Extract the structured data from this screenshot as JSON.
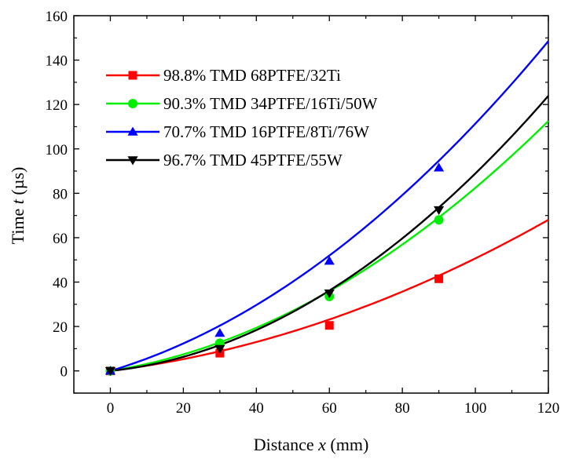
{
  "chart_data": {
    "type": "line",
    "xlabel": "Distance x (mm)",
    "ylabel": "Time t (µs)",
    "xlabel_parts": [
      "Distance ",
      "x",
      " (mm)"
    ],
    "ylabel_parts": [
      "Time ",
      "t",
      " (µs)"
    ],
    "xlim": [
      -10,
      120
    ],
    "ylim": [
      -10,
      160
    ],
    "xticks": [
      0,
      20,
      40,
      60,
      80,
      100,
      120
    ],
    "yticks": [
      0,
      20,
      40,
      60,
      80,
      100,
      120,
      140,
      160
    ],
    "grid": false,
    "legend_position": "top-left",
    "series": [
      {
        "name": "98.8% TMD 68PTFE/32Ti",
        "color": "#ff0000",
        "marker": "square",
        "points": [
          [
            0,
            0
          ],
          [
            30,
            8
          ],
          [
            60,
            20.5
          ],
          [
            90,
            41.5
          ]
        ],
        "fit_coefficients": [
          0.2047,
          0.00302
        ]
      },
      {
        "name": "90.3% TMD 34PTFE/16Ti/50W",
        "color": "#00ee00",
        "marker": "circle",
        "points": [
          [
            0,
            0
          ],
          [
            30,
            12.5
          ],
          [
            60,
            33.5
          ],
          [
            90,
            68
          ]
        ],
        "fit_coefficients": [
          0.2587,
          0.00566
        ]
      },
      {
        "name": "70.7% TMD 16PTFE/8Ti/76W",
        "color": "#0000ff",
        "marker": "triangle-up",
        "points": [
          [
            0,
            0
          ],
          [
            30,
            17
          ],
          [
            60,
            49.5
          ],
          [
            90,
            91.5
          ]
        ],
        "fit_coefficients": [
          0.4938,
          0.0062
        ]
      },
      {
        "name": "96.7% TMD 45PTFE/55W",
        "color": "#000000",
        "marker": "triangle-down",
        "points": [
          [
            0,
            0
          ],
          [
            30,
            10
          ],
          [
            60,
            35
          ],
          [
            90,
            72.5
          ]
        ],
        "fit_coefficients": [
          0.1733,
          0.00716
        ]
      }
    ]
  }
}
